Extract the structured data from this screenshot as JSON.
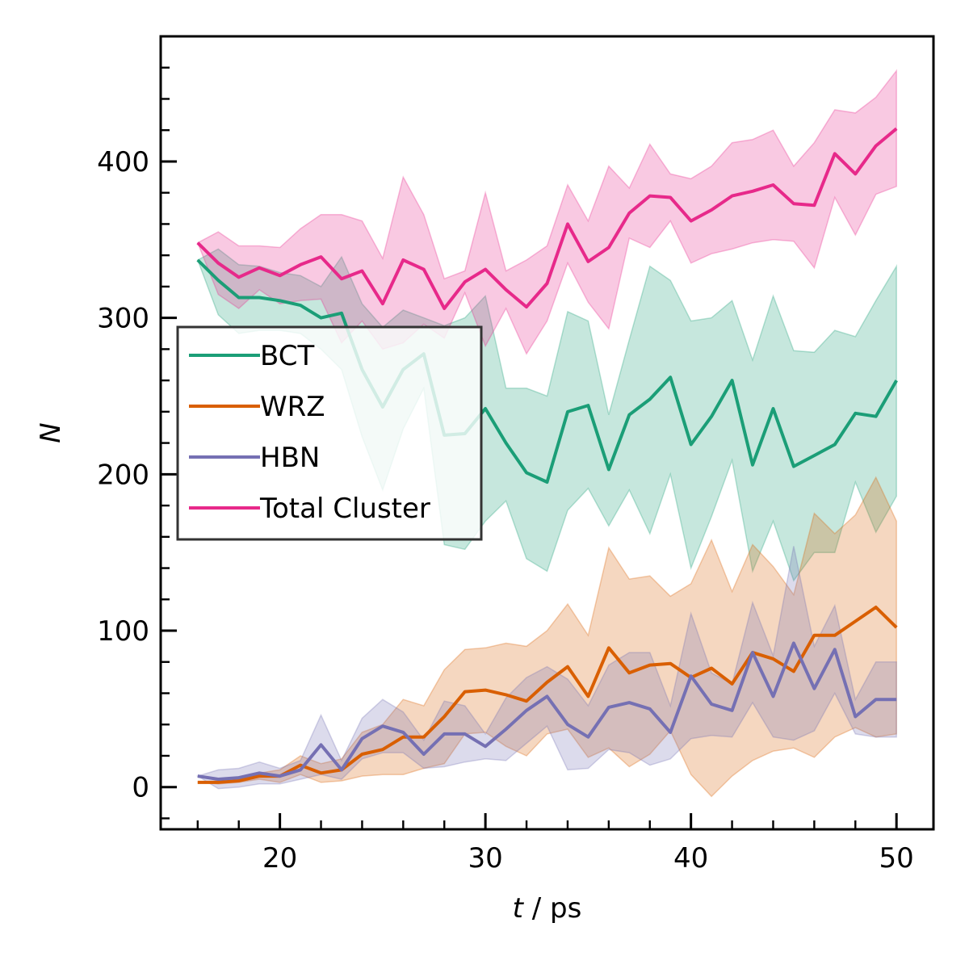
{
  "chart_data": {
    "type": "line",
    "xlabel_var": "t",
    "xlabel_unit": " / ps",
    "ylabel": "N",
    "xlim": [
      14.2,
      51.8
    ],
    "ylim": [
      -27,
      480
    ],
    "xticks": [
      20,
      30,
      40,
      50
    ],
    "yticks": [
      0,
      100,
      200,
      300,
      400
    ],
    "legend_position": "center-left",
    "x": [
      16,
      17,
      18,
      19,
      20,
      21,
      22,
      23,
      24,
      25,
      26,
      27,
      28,
      29,
      30,
      31,
      32,
      33,
      34,
      35,
      36,
      37,
      38,
      39,
      40,
      41,
      42,
      43,
      44,
      45,
      46,
      47,
      48,
      49,
      50
    ],
    "series": [
      {
        "name": "BCT",
        "color": "#1b9e77",
        "values": [
          337,
          324,
          313,
          313,
          311,
          308,
          300,
          303,
          267,
          243,
          267,
          277,
          225,
          226,
          242,
          220,
          201,
          195,
          240,
          244,
          203,
          238,
          248,
          262,
          219,
          237,
          260,
          206,
          242,
          205,
          212,
          219,
          239,
          237,
          260
        ],
        "upper": [
          337,
          344,
          334,
          333,
          329,
          327,
          320,
          339,
          309,
          294,
          305,
          300,
          295,
          300,
          314,
          255,
          255,
          250,
          304,
          298,
          238,
          286,
          333,
          324,
          298,
          300,
          311,
          273,
          314,
          279,
          278,
          292,
          288,
          311,
          333
        ],
        "lower": [
          337,
          302,
          290,
          292,
          292,
          290,
          280,
          267,
          224,
          190,
          229,
          255,
          155,
          152,
          170,
          183,
          146,
          138,
          177,
          191,
          167,
          190,
          162,
          200,
          140,
          173,
          209,
          138,
          170,
          132,
          150,
          150,
          195,
          163,
          186
        ]
      },
      {
        "name": "WRZ",
        "color": "#d95f02",
        "values": [
          3,
          3,
          4,
          7,
          7,
          14,
          9,
          11,
          21,
          24,
          32,
          32,
          45,
          61,
          62,
          59,
          55,
          67,
          77,
          58,
          89,
          73,
          78,
          79,
          70,
          76,
          66,
          86,
          82,
          74,
          97,
          97,
          106,
          115,
          102
        ],
        "upper": [
          3,
          4,
          5,
          9,
          11,
          20,
          15,
          18,
          35,
          40,
          56,
          52,
          75,
          88,
          89,
          92,
          90,
          100,
          117,
          97,
          153,
          133,
          135,
          122,
          130,
          158,
          125,
          155,
          141,
          123,
          175,
          162,
          174,
          198,
          170
        ],
        "lower": [
          3,
          2,
          3,
          5,
          3,
          8,
          3,
          4,
          7,
          8,
          8,
          12,
          15,
          34,
          35,
          26,
          20,
          34,
          37,
          19,
          25,
          13,
          21,
          36,
          8,
          -6,
          7,
          17,
          23,
          25,
          19,
          32,
          38,
          32,
          34
        ]
      },
      {
        "name": "HBN",
        "color": "#7570b3",
        "values": [
          7,
          5,
          6,
          9,
          7,
          11,
          27,
          11,
          31,
          39,
          35,
          21,
          34,
          34,
          26,
          37,
          49,
          58,
          40,
          32,
          51,
          54,
          50,
          35,
          71,
          53,
          49,
          86,
          58,
          92,
          63,
          88,
          45,
          56,
          56
        ],
        "upper": [
          7,
          11,
          12,
          16,
          12,
          17,
          46,
          17,
          44,
          56,
          48,
          30,
          55,
          52,
          34,
          57,
          70,
          77,
          69,
          52,
          78,
          86,
          86,
          52,
          111,
          73,
          66,
          118,
          84,
          154,
          90,
          116,
          56,
          80,
          80
        ],
        "lower": [
          7,
          -1,
          0,
          2,
          2,
          5,
          8,
          5,
          18,
          22,
          22,
          12,
          13,
          16,
          18,
          17,
          28,
          39,
          11,
          12,
          24,
          22,
          14,
          18,
          31,
          33,
          32,
          54,
          32,
          30,
          36,
          60,
          34,
          32,
          32
        ]
      },
      {
        "name": "Total Cluster",
        "color": "#e7298a",
        "values": [
          348,
          335,
          326,
          332,
          327,
          334,
          339,
          325,
          330,
          309,
          337,
          331,
          306,
          323,
          331,
          318,
          307,
          322,
          360,
          336,
          345,
          367,
          378,
          377,
          362,
          369,
          378,
          381,
          385,
          373,
          372,
          405,
          392,
          410,
          421
        ],
        "upper": [
          348,
          355,
          346,
          346,
          345,
          357,
          366,
          366,
          362,
          338,
          390,
          366,
          325,
          330,
          380,
          330,
          337,
          346,
          385,
          362,
          397,
          383,
          411,
          392,
          389,
          397,
          412,
          414,
          420,
          397,
          412,
          433,
          431,
          441,
          458
        ],
        "lower": [
          348,
          315,
          306,
          318,
          309,
          311,
          312,
          284,
          298,
          280,
          284,
          296,
          287,
          316,
          282,
          306,
          277,
          298,
          335,
          310,
          293,
          351,
          345,
          362,
          335,
          341,
          344,
          348,
          350,
          349,
          332,
          377,
          353,
          379,
          384
        ]
      }
    ]
  }
}
